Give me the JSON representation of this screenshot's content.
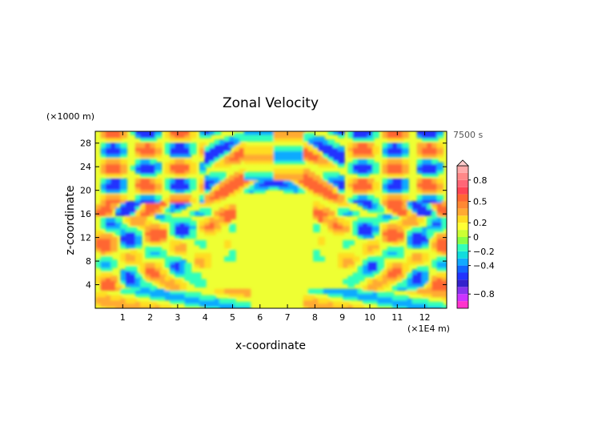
{
  "chart_data": {
    "type": "heatmap",
    "title": "Zonal Velocity",
    "xlabel": "x-coordinate",
    "ylabel": "z-coordinate",
    "x_unit_label": "(×1E4 m)",
    "y_unit_label": "(×1000 m)",
    "time_label": "7500 s",
    "xlim": [
      0,
      12.8
    ],
    "ylim": [
      0,
      30
    ],
    "x_ticks": [
      1,
      2,
      3,
      4,
      5,
      6,
      7,
      8,
      9,
      10,
      11,
      12
    ],
    "y_ticks": [
      4,
      8,
      12,
      16,
      20,
      24,
      28
    ],
    "colorbar": {
      "levels": [
        -1.0,
        -0.9,
        -0.8,
        -0.7,
        -0.6,
        -0.5,
        -0.4,
        -0.3,
        -0.2,
        -0.1,
        0,
        0.1,
        0.2,
        0.3,
        0.4,
        0.5,
        0.6,
        0.7,
        0.8,
        0.9,
        1.0
      ],
      "tick_values": [
        0.8,
        0.5,
        0.2,
        0,
        -0.2,
        -0.4,
        -0.8
      ],
      "tick_labels": [
        "0.8",
        "0.5",
        "0.2",
        "0",
        "−0.2",
        "−0.4",
        "−0.8"
      ],
      "colors": [
        "#ff33cc",
        "#cc33ff",
        "#8833ee",
        "#3322cc",
        "#2233ff",
        "#1166ff",
        "#11aaff",
        "#11dddd",
        "#33ffbb",
        "#88ff44",
        "#ccff33",
        "#ffff33",
        "#ffdd22",
        "#ffaa33",
        "#ff8833",
        "#ff6633",
        "#ff4455",
        "#ff6677",
        "#ff8888",
        "#ffaaaa"
      ]
    },
    "grid": false,
    "legend": "colorbar-right"
  }
}
